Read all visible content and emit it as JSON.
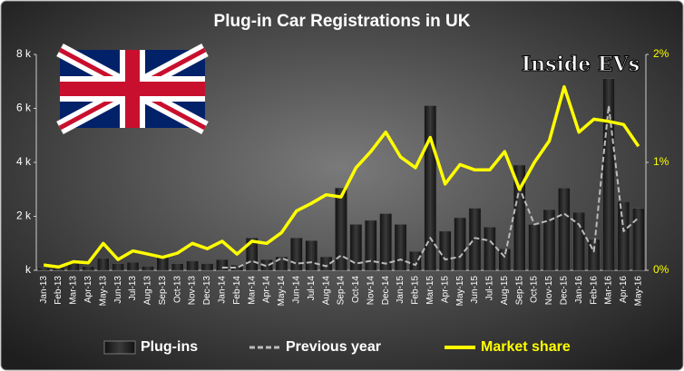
{
  "chart_data": {
    "type": "combo",
    "title": "Plug-in Car Registrations in UK",
    "annotation": "Inside EVs",
    "categories": [
      "Jan-13",
      "Feb-13",
      "Mar-13",
      "Apr-13",
      "May-13",
      "Jun-13",
      "Jul-13",
      "Aug-13",
      "Sep-13",
      "Oct-13",
      "Nov-13",
      "Dec-13",
      "Jan-14",
      "Feb-14",
      "Mar-14",
      "Apr-14",
      "May-14",
      "Jun-14",
      "Jul-14",
      "Aug-14",
      "Sep-14",
      "Oct-14",
      "Nov-14",
      "Dec-14",
      "Jan-15",
      "Feb-15",
      "Mar-15",
      "Apr-15",
      "May-15",
      "Jun-15",
      "Jul-15",
      "Aug-15",
      "Sep-15",
      "Oct-15",
      "Nov-15",
      "Dec-15",
      "Jan-16",
      "Feb-16",
      "Mar-16",
      "Apr-16",
      "May-16"
    ],
    "series": [
      {
        "name": "Plug-ins",
        "type": "bar",
        "color": "#1a1a1a",
        "values": [
          100,
          100,
          350,
          150,
          450,
          250,
          300,
          150,
          550,
          250,
          350,
          250,
          400,
          200,
          1200,
          400,
          500,
          1200,
          1100,
          500,
          3050,
          1700,
          1850,
          2100,
          1700,
          700,
          6100,
          1450,
          1950,
          2300,
          1600,
          800,
          3900,
          1700,
          2250,
          3050,
          2150,
          1150,
          7100,
          2550,
          2300
        ]
      },
      {
        "name": "Previous year",
        "type": "line",
        "dashed": true,
        "color": "#bbbbbb",
        "values": [
          null,
          null,
          null,
          null,
          null,
          null,
          null,
          null,
          null,
          null,
          null,
          null,
          100,
          100,
          350,
          150,
          450,
          250,
          300,
          150,
          550,
          250,
          350,
          250,
          400,
          200,
          1200,
          400,
          500,
          1200,
          1100,
          500,
          3050,
          1700,
          1850,
          2100,
          1700,
          700,
          6100,
          1450,
          1950
        ]
      },
      {
        "name": "Market share",
        "type": "line",
        "axis": "y2",
        "color": "#ffff00",
        "values": [
          0.05,
          0.03,
          0.08,
          0.07,
          0.25,
          0.1,
          0.18,
          0.15,
          0.12,
          0.16,
          0.25,
          0.2,
          0.27,
          0.15,
          0.27,
          0.25,
          0.35,
          0.55,
          0.62,
          0.7,
          0.68,
          0.95,
          1.1,
          1.28,
          1.05,
          0.95,
          1.23,
          0.8,
          0.98,
          0.93,
          0.93,
          1.1,
          0.75,
          1.0,
          1.2,
          1.7,
          1.28,
          1.4,
          1.38,
          1.35,
          1.15
        ]
      }
    ],
    "ylim": [
      0,
      8000
    ],
    "yticks": [
      {
        "value": 0,
        "label": "k"
      },
      {
        "value": 2000,
        "label": "2 k"
      },
      {
        "value": 4000,
        "label": "4 k"
      },
      {
        "value": 6000,
        "label": "6 k"
      },
      {
        "value": 8000,
        "label": "8 k"
      }
    ],
    "y2lim": [
      0,
      2
    ],
    "y2ticks": [
      {
        "value": 0,
        "label": "0%"
      },
      {
        "value": 1,
        "label": "1%"
      },
      {
        "value": 2,
        "label": "2%"
      }
    ],
    "grid": false
  }
}
